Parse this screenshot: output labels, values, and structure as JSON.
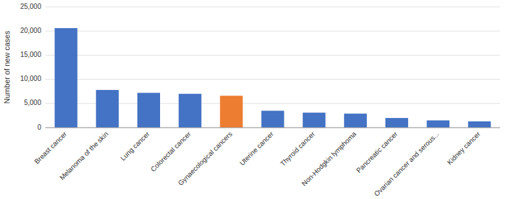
{
  "chart_data": {
    "type": "bar",
    "categories": [
      "Breast cancer",
      "Melanoma of the skin",
      "Lung cancer",
      "Colorectal cancer",
      "Gynaecological cancers",
      "Uterine cancer",
      "Thyroid cancer",
      "Non-Hodgkin lymphoma",
      "Pancreatic cancer",
      "Ovarian cancer and serous...",
      "Kidney cancer"
    ],
    "values": [
      20600,
      7800,
      7200,
      7000,
      6600,
      3500,
      3100,
      2900,
      2000,
      1500,
      1300
    ],
    "colors": [
      "#4472c4",
      "#4472c4",
      "#4472c4",
      "#4472c4",
      "#ed7d31",
      "#4472c4",
      "#4472c4",
      "#4472c4",
      "#4472c4",
      "#4472c4",
      "#4472c4"
    ],
    "ylabel": "Number of new cases",
    "ylim": [
      0,
      25000
    ],
    "yticks": [
      0,
      {
        "value": 5000,
        "label": "5,000"
      },
      {
        "value": 10000,
        "label": "10,000"
      },
      {
        "value": 15000,
        "label": "15,000"
      },
      {
        "value": 20000,
        "label": "20,000"
      },
      {
        "value": 25000,
        "label": "25,000"
      }
    ],
    "grid": true
  }
}
